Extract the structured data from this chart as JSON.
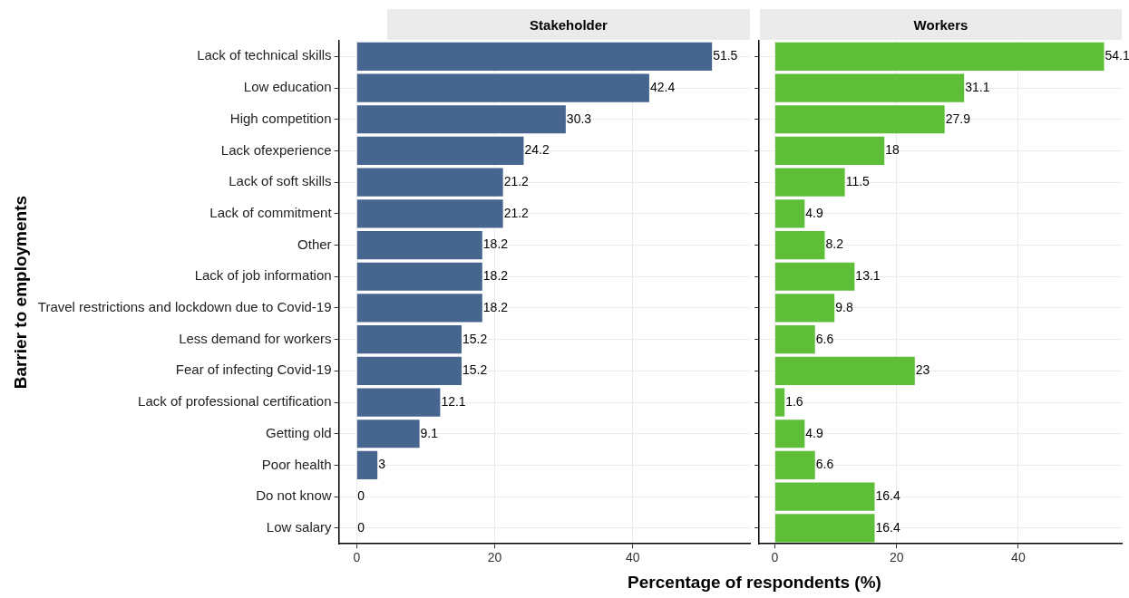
{
  "chart_data": [
    {
      "type": "bar",
      "orientation": "horizontal",
      "title": "Stakeholder",
      "xlabel": "Percentage of respondents (%)",
      "ylabel": "Barrier to employments",
      "categories": [
        "Lack of technical skills",
        "Low education",
        "High competition",
        "Lack ofexperience",
        "Lack of soft skills",
        "Lack of commitment",
        "Other",
        "Lack of job information",
        "Travel restrictions and lockdown due to Covid-19",
        "Less demand for workers",
        "Fear of infecting Covid-19",
        "Lack of professional certification",
        "Getting old",
        "Poor health",
        "Do not know",
        "Low salary"
      ],
      "values": [
        51.5,
        42.4,
        30.3,
        24.2,
        21.2,
        21.2,
        18.2,
        18.2,
        18.2,
        15.2,
        15.2,
        12.1,
        9.1,
        3,
        0,
        0
      ],
      "color": "#46658f",
      "xlim": [
        -2.6,
        57
      ],
      "xticks": [
        0,
        20,
        40
      ],
      "grid": true,
      "data_labels": true
    },
    {
      "type": "bar",
      "orientation": "horizontal",
      "title": "Workers",
      "tick_labels": "x",
      "categories": [
        null,
        null,
        null,
        null,
        null,
        null,
        null,
        null,
        null,
        null,
        null,
        null,
        null,
        null,
        null,
        null
      ],
      "values": [
        54.1,
        31.1,
        27.9,
        18,
        11.5,
        4.9,
        8.2,
        13.1,
        9.8,
        6.6,
        23,
        1.6,
        4.9,
        6.6,
        16.4,
        16.4
      ],
      "color": "#5fbe38",
      "xlim": [
        -2.6,
        57
      ],
      "xticks": [
        0,
        20,
        40
      ],
      "grid": true,
      "data_labels": true
    }
  ]
}
